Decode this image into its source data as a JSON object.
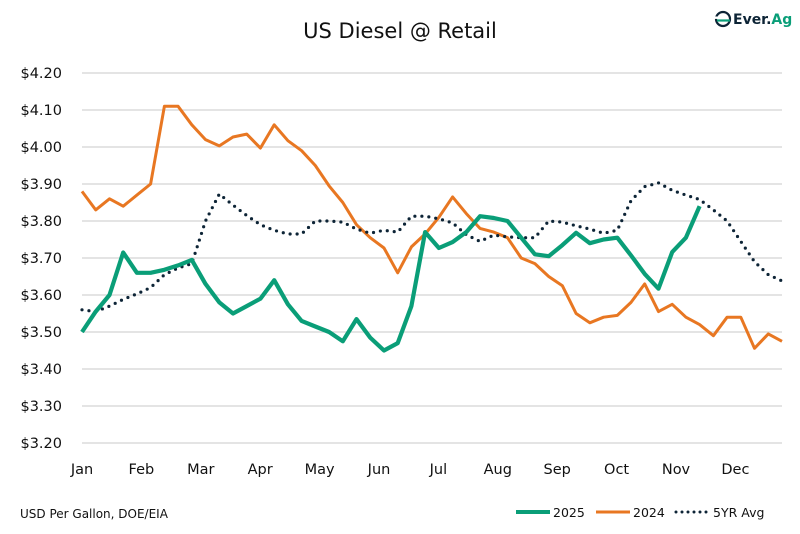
{
  "chart_data": {
    "type": "line",
    "title": "US Diesel @ Retail",
    "xlabel": "",
    "ylabel": "",
    "note": "USD Per Gallon, DOE/EIA",
    "x_tick_labels": [
      "Jan",
      "Feb",
      "Mar",
      "Apr",
      "May",
      "Jun",
      "Jul",
      "Aug",
      "Sep",
      "Oct",
      "Nov",
      "Dec"
    ],
    "y_tick_labels": [
      "$3.20",
      "$3.30",
      "$3.40",
      "$3.50",
      "$3.60",
      "$3.70",
      "$3.80",
      "$3.90",
      "$4.00",
      "$4.10",
      "$4.20"
    ],
    "ylim": [
      3.2,
      4.2
    ],
    "x_unit": "week of year",
    "xlim": [
      1,
      52
    ],
    "grid": "horizontal",
    "legend_position": "bottom-right",
    "series": [
      {
        "name": "2025",
        "color": "#0a9e78",
        "style": "solid",
        "values": [
          3.5,
          3.555,
          3.6,
          3.715,
          3.66,
          3.66,
          3.668,
          3.68,
          3.695,
          3.63,
          3.58,
          3.55,
          3.57,
          3.59,
          3.64,
          3.575,
          3.53,
          3.515,
          3.5,
          3.475,
          3.535,
          3.485,
          3.45,
          3.47,
          3.57,
          3.77,
          3.727,
          3.743,
          3.77,
          3.813,
          3.808,
          3.8,
          3.755,
          3.71,
          3.705,
          3.735,
          3.768,
          3.74,
          3.75,
          3.755,
          3.707,
          3.657,
          3.617,
          3.716,
          3.755,
          3.84
        ]
      },
      {
        "name": "2024",
        "color": "#e87722",
        "style": "solid",
        "values": [
          3.88,
          3.83,
          3.86,
          3.84,
          3.87,
          3.9,
          4.11,
          4.11,
          4.06,
          4.02,
          4.003,
          4.027,
          4.035,
          3.997,
          4.06,
          4.017,
          3.99,
          3.95,
          3.895,
          3.85,
          3.79,
          3.755,
          3.727,
          3.66,
          3.73,
          3.765,
          3.81,
          3.865,
          3.82,
          3.78,
          3.77,
          3.755,
          3.7,
          3.685,
          3.65,
          3.625,
          3.55,
          3.525,
          3.54,
          3.545,
          3.58,
          3.63,
          3.555,
          3.575,
          3.54,
          3.52,
          3.49,
          3.54,
          3.54,
          3.456,
          3.495,
          3.475
        ]
      },
      {
        "name": "5YR Avg",
        "color": "#0d2436",
        "style": "dotted",
        "values": [
          3.56,
          3.555,
          3.57,
          3.588,
          3.603,
          3.62,
          3.655,
          3.673,
          3.685,
          3.8,
          3.873,
          3.843,
          3.815,
          3.79,
          3.775,
          3.765,
          3.765,
          3.8,
          3.8,
          3.797,
          3.778,
          3.767,
          3.775,
          3.77,
          3.813,
          3.813,
          3.806,
          3.795,
          3.763,
          3.745,
          3.762,
          3.757,
          3.755,
          3.755,
          3.8,
          3.797,
          3.787,
          3.778,
          3.767,
          3.775,
          3.855,
          3.893,
          3.903,
          3.883,
          3.87,
          3.858,
          3.83,
          3.8,
          3.745,
          3.69,
          3.655,
          3.638
        ]
      }
    ]
  },
  "logo": {
    "text": "Ever.Ag",
    "icon": "ever-ag-logo-icon",
    "colors": [
      "#0d2436",
      "#0a9e78"
    ]
  },
  "colors": {
    "grid": "#d4d4d4",
    "background": "#ffffff"
  }
}
